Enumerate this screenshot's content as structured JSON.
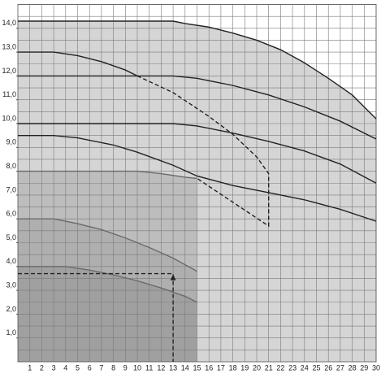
{
  "chart_data": {
    "type": "line",
    "xlim": [
      0,
      30
    ],
    "ylim": [
      0,
      15
    ],
    "xticks": [
      1,
      2,
      3,
      4,
      5,
      6,
      7,
      8,
      9,
      10,
      11,
      12,
      13,
      14,
      15,
      16,
      17,
      18,
      19,
      20,
      21,
      22,
      23,
      24,
      25,
      26,
      27,
      28,
      29,
      30
    ],
    "yticks": [
      {
        "value": 1,
        "label": "1,0"
      },
      {
        "value": 2,
        "label": "2,0"
      },
      {
        "value": 3,
        "label": "3,0"
      },
      {
        "value": 4,
        "label": "4,0"
      },
      {
        "value": 5,
        "label": "5,0"
      },
      {
        "value": 6,
        "label": "6,0"
      },
      {
        "value": 7,
        "label": "7,0"
      },
      {
        "value": 8,
        "label": "8,0"
      },
      {
        "value": 9,
        "label": "9,0"
      },
      {
        "value": 10,
        "label": "10,0"
      },
      {
        "value": 11,
        "label": "11,0"
      },
      {
        "value": 12,
        "label": "12,0"
      },
      {
        "value": 13,
        "label": "13,0"
      },
      {
        "value": 14,
        "label": "14,0"
      }
    ],
    "grid": true,
    "ygrid_step": 0.5,
    "series": [
      {
        "color": "#222222",
        "fill": "#d5d5d5",
        "x": [
          0,
          13,
          14,
          16,
          18,
          20,
          22,
          24,
          26,
          28,
          30
        ],
        "values": [
          14.3,
          14.3,
          14.2,
          14.05,
          13.8,
          13.5,
          13.1,
          12.55,
          11.9,
          11.2,
          10.2
        ]
      },
      {
        "color": "#6a6a6a",
        "fill": "#bdbdbd",
        "x": [
          0,
          10,
          12,
          14,
          15
        ],
        "values": [
          8.0,
          8.0,
          7.9,
          7.75,
          7.7
        ]
      },
      {
        "color": "#6a6a6a",
        "fill": "#afafaf",
        "x": [
          0,
          3,
          5,
          7,
          9,
          11,
          13,
          15
        ],
        "values": [
          6.0,
          6.0,
          5.8,
          5.55,
          5.2,
          4.8,
          4.35,
          3.8
        ]
      },
      {
        "color": "#6a6a6a",
        "fill": "#a0a0a0",
        "x": [
          0,
          4,
          6,
          8,
          10,
          12,
          14,
          15
        ],
        "values": [
          4.0,
          4.0,
          3.85,
          3.65,
          3.4,
          3.1,
          2.75,
          2.5
        ]
      },
      {
        "color": "#222222",
        "x": [
          0,
          3,
          5,
          7,
          9,
          10
        ],
        "values": [
          13.0,
          13.0,
          12.85,
          12.6,
          12.25,
          12.0
        ]
      },
      {
        "color": "#222222",
        "x": [
          0,
          13,
          15,
          18,
          21,
          24,
          27,
          30
        ],
        "values": [
          12.0,
          12.0,
          11.9,
          11.6,
          11.2,
          10.7,
          10.1,
          9.35
        ]
      },
      {
        "color": "#222222",
        "x": [
          0,
          13,
          15,
          18,
          21,
          24,
          27,
          30
        ],
        "values": [
          10.0,
          10.0,
          9.9,
          9.6,
          9.25,
          8.85,
          8.3,
          7.5
        ]
      },
      {
        "color": "#222222",
        "x": [
          0,
          3,
          5,
          8,
          10,
          13,
          15,
          18,
          21,
          24,
          27,
          30
        ],
        "values": [
          9.5,
          9.5,
          9.4,
          9.1,
          8.8,
          8.25,
          7.8,
          7.4,
          7.1,
          6.8,
          6.4,
          5.9
        ]
      },
      {
        "color": "#222222",
        "dashed": true,
        "x": [
          10,
          13,
          16,
          18,
          20,
          21,
          21,
          15
        ],
        "values": [
          12.0,
          11.3,
          10.3,
          9.55,
          8.6,
          7.9,
          5.7,
          7.7
        ]
      },
      {
        "color": "#222222",
        "dashed": true,
        "arrow": true,
        "x": [
          0,
          13,
          13
        ],
        "values": [
          3.7,
          3.7,
          0
        ]
      }
    ]
  }
}
